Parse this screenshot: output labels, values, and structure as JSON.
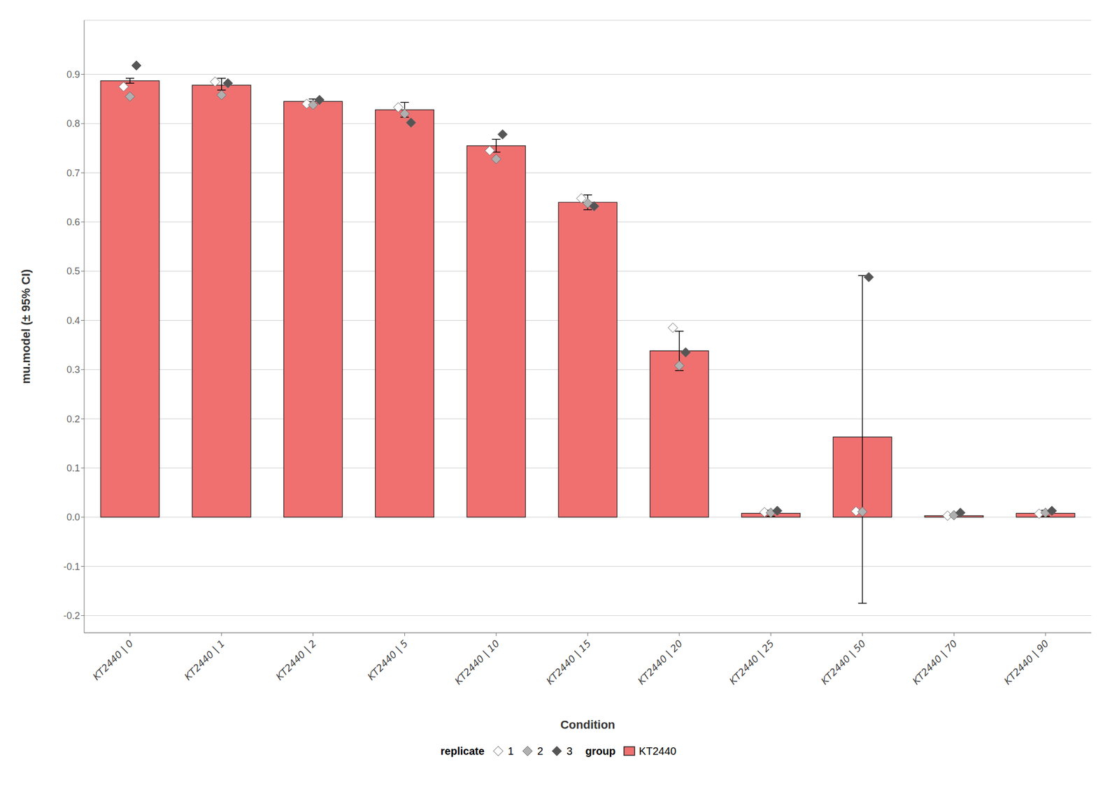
{
  "chart_data": {
    "type": "bar",
    "xlabel": "Condition",
    "ylabel": "mu.model (± 95% CI)",
    "categories": [
      "KT2440 | 0",
      "KT2440 | 1",
      "KT2440 | 2",
      "KT2440 | 5",
      "KT2440 | 10",
      "KT2440 | 15",
      "KT2440 | 20",
      "KT2440 | 25",
      "KT2440 | 50",
      "KT2440 | 70",
      "KT2440 | 90"
    ],
    "series": [
      {
        "name": "KT2440",
        "type": "bar",
        "color": "#F07070",
        "values": [
          0.887,
          0.878,
          0.845,
          0.828,
          0.755,
          0.64,
          0.338,
          0.008,
          0.163,
          0.003,
          0.008
        ],
        "ci_lower": [
          0.882,
          0.868,
          0.84,
          0.813,
          0.742,
          0.625,
          0.298,
          0.002,
          -0.175,
          0.001,
          0.002
        ],
        "ci_upper": [
          0.892,
          0.892,
          0.85,
          0.843,
          0.768,
          0.655,
          0.378,
          0.014,
          0.491,
          0.005,
          0.014
        ]
      },
      {
        "name": "1",
        "type": "scatter",
        "marker": "diamond",
        "color": "#ffffff",
        "values": [
          0.875,
          0.885,
          0.84,
          0.833,
          0.745,
          0.648,
          0.385,
          0.01,
          0.012,
          0.003,
          0.007
        ]
      },
      {
        "name": "2",
        "type": "scatter",
        "marker": "diamond",
        "color": "#b0b0b0",
        "values": [
          0.855,
          0.858,
          0.838,
          0.82,
          0.728,
          0.638,
          0.308,
          0.009,
          0.011,
          0.004,
          0.009
        ]
      },
      {
        "name": "3",
        "type": "scatter",
        "marker": "diamond",
        "color": "#555555",
        "values": [
          0.918,
          0.882,
          0.848,
          0.802,
          0.778,
          0.632,
          0.335,
          0.013,
          0.488,
          0.009,
          0.013
        ]
      }
    ],
    "ylim": [
      -0.235,
      1.01
    ],
    "yticks": [
      -0.2,
      -0.1,
      {
        "value": 0,
        "label": "0.0"
      },
      0.1,
      0.2,
      0.3,
      0.4,
      0.5,
      0.6,
      0.7,
      0.8,
      0.9
    ],
    "grid": true,
    "legend": "bottom",
    "legend_sections": [
      {
        "title": "replicate",
        "series": [
          "1",
          "2",
          "3"
        ]
      },
      {
        "title": "group",
        "series": [
          "KT2440"
        ]
      }
    ]
  }
}
